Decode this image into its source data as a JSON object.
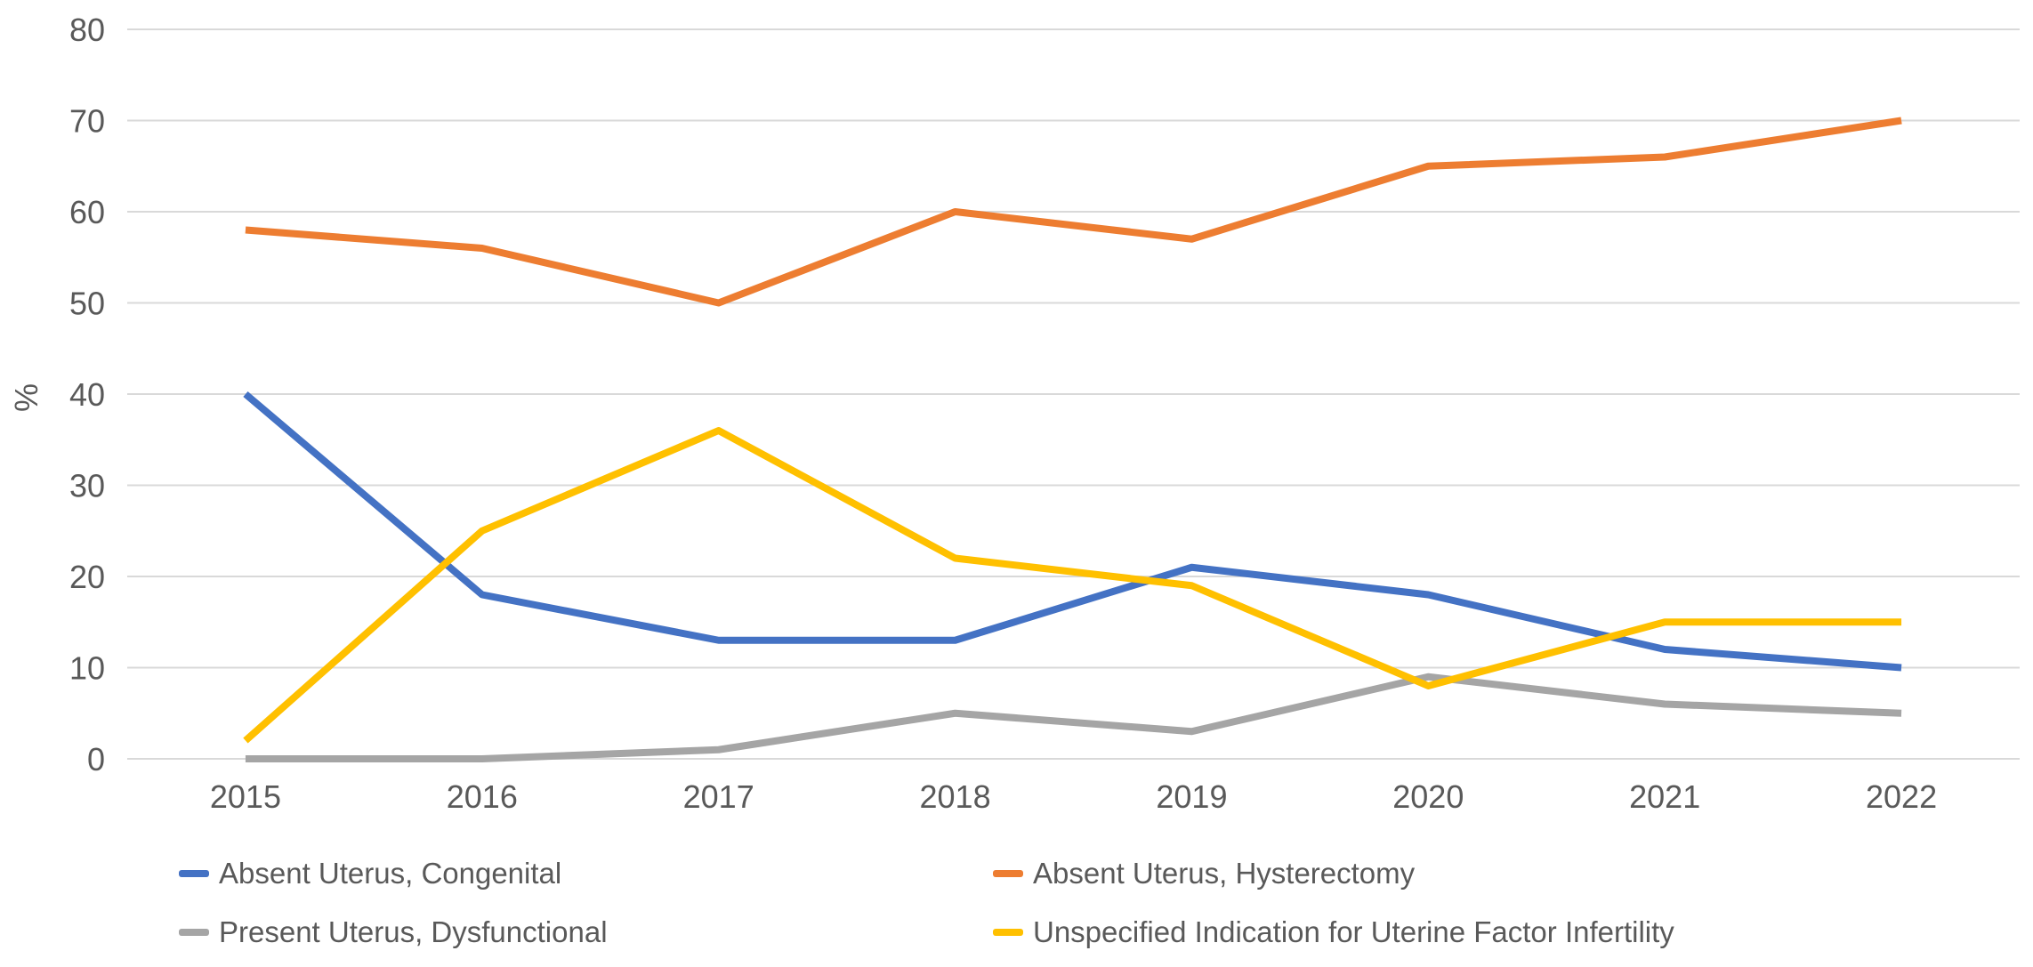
{
  "chart_data": {
    "type": "line",
    "title": "",
    "xlabel": "",
    "ylabel": "%",
    "ylim": [
      0,
      80
    ],
    "ytick_step": 10,
    "grid": true,
    "legend_position": "bottom-two-columns",
    "categories": [
      "2015",
      "2016",
      "2017",
      "2018",
      "2019",
      "2020",
      "2021",
      "2022"
    ],
    "y_tick_labels": [
      "0",
      "10",
      "20",
      "30",
      "40",
      "50",
      "60",
      "70",
      "80"
    ],
    "series": [
      {
        "name": "Absent Uterus, Congenital",
        "color": "#4472C4",
        "values": [
          40,
          18,
          13,
          13,
          21,
          18,
          12,
          10
        ]
      },
      {
        "name": "Absent Uterus, Hysterectomy",
        "color": "#ED7D31",
        "values": [
          58,
          56,
          50,
          60,
          57,
          65,
          66,
          70
        ]
      },
      {
        "name": "Present Uterus, Dysfunctional",
        "color": "#A5A5A5",
        "values": [
          0,
          0,
          1,
          5,
          3,
          9,
          6,
          5
        ]
      },
      {
        "name": "Unspecified Indication for Uterine Factor Infertility",
        "color": "#FFC000",
        "values": [
          2,
          25,
          36,
          22,
          19,
          8,
          15,
          15
        ]
      }
    ],
    "colors": {
      "gridline": "#D9D9D9",
      "axis_text": "#595959",
      "background": "#FFFFFF"
    }
  },
  "legend": {
    "rows": 2,
    "columns": 2,
    "order": [
      0,
      1,
      2,
      3
    ]
  }
}
